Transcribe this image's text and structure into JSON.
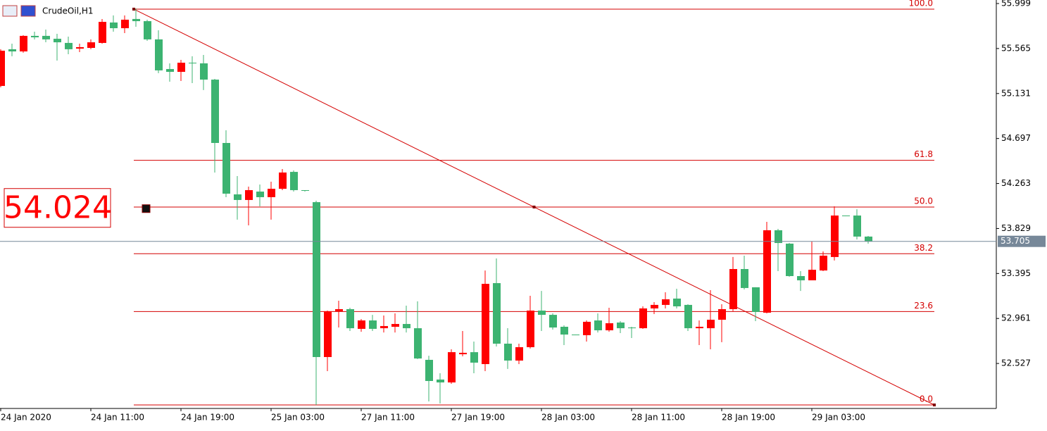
{
  "chart_data": {
    "type": "candlestick",
    "title": "CrudeOil,H1",
    "categories": [
      "24 Jan 2020",
      null,
      null,
      null,
      null,
      null,
      null,
      null,
      "24 Jan 11:00",
      null,
      null,
      null,
      null,
      null,
      null,
      null,
      "24 Jan 19:00",
      null,
      null,
      null,
      null,
      null,
      null,
      null,
      "25 Jan 03:00",
      null,
      null,
      null,
      null,
      null,
      null,
      null,
      "27 Jan 11:00",
      null,
      null,
      null,
      null,
      null,
      null,
      null,
      "27 Jan 19:00",
      null,
      null,
      null,
      null,
      null,
      null,
      null,
      "28 Jan 03:00",
      null,
      null,
      null,
      null,
      null,
      null,
      null,
      "28 Jan 11:00",
      null,
      null,
      null,
      null,
      null,
      null,
      null,
      "28 Jan 19:00",
      null,
      null,
      null,
      null,
      null,
      null,
      null,
      "29 Jan 03:00",
      null,
      null,
      null,
      null,
      null
    ],
    "open": [
      55.204,
      55.558,
      55.537,
      55.687,
      55.687,
      55.659,
      55.619,
      55.564,
      55.571,
      55.619,
      55.816,
      55.761,
      55.85,
      55.829,
      55.653,
      55.367,
      55.34,
      55.428,
      55.422,
      55.265,
      54.654,
      54.158,
      54.104,
      54.185,
      54.131,
      54.212,
      54.375,
      54.199,
      54.083,
      52.589,
      53.031,
      53.051,
      52.861,
      52.942,
      52.867,
      52.881,
      52.908,
      52.867,
      52.562,
      52.372,
      52.344,
      52.616,
      52.636,
      52.521,
      53.302,
      52.718,
      52.555,
      52.684,
      53.037,
      52.996,
      52.881,
      52.806,
      52.8,
      52.942,
      52.847,
      52.922,
      52.874,
      52.867,
      53.058,
      53.092,
      53.153,
      53.092,
      52.867,
      52.867,
      52.949,
      53.051,
      53.438,
      53.262,
      53.017,
      53.812,
      53.683,
      53.37,
      53.329,
      53.424,
      53.554,
      53.954,
      53.954,
      53.751
    ],
    "high": [
      55.558,
      55.612,
      55.693,
      55.727,
      55.748,
      55.707,
      55.68,
      55.612,
      55.653,
      55.85,
      55.884,
      55.884,
      55.952,
      55.843,
      55.741,
      55.422,
      55.456,
      55.49,
      55.503,
      55.272,
      54.776,
      54.335,
      54.233,
      54.253,
      54.28,
      54.403,
      54.389,
      54.199,
      54.097,
      53.037,
      53.132,
      53.064,
      52.956,
      52.996,
      52.99,
      53.01,
      53.085,
      53.126,
      52.602,
      52.433,
      52.664,
      52.84,
      52.738,
      53.424,
      53.54,
      52.867,
      52.718,
      53.18,
      53.227,
      53.01,
      52.895,
      52.806,
      52.942,
      53.01,
      53.064,
      52.935,
      52.881,
      53.078,
      53.119,
      53.214,
      53.248,
      53.098,
      52.942,
      53.234,
      53.098,
      53.554,
      53.567,
      53.262,
      53.893,
      53.825,
      53.689,
      53.418,
      53.703,
      53.608,
      54.043,
      53.954,
      54.015,
      53.757
    ],
    "low": [
      55.191,
      55.49,
      55.524,
      55.653,
      55.625,
      55.449,
      55.51,
      55.53,
      55.558,
      55.612,
      55.727,
      55.714,
      55.775,
      55.639,
      55.327,
      55.245,
      55.252,
      55.231,
      55.164,
      54.369,
      54.131,
      53.914,
      53.859,
      54.043,
      53.914,
      54.199,
      54.185,
      54.185,
      52.127,
      52.453,
      52.874,
      52.84,
      52.833,
      52.84,
      52.826,
      52.826,
      52.826,
      52.569,
      52.161,
      52.141,
      52.331,
      52.596,
      52.433,
      52.453,
      52.691,
      52.474,
      52.521,
      52.671,
      52.84,
      52.854,
      52.704,
      52.8,
      52.738,
      52.826,
      52.833,
      52.82,
      52.772,
      52.861,
      53.003,
      53.058,
      53.058,
      52.84,
      52.704,
      52.664,
      52.732,
      53.031,
      53.241,
      52.935,
      53.01,
      53.418,
      53.363,
      53.227,
      53.329,
      53.418,
      53.52,
      53.948,
      53.723,
      53.683
    ],
    "close": [
      55.544,
      55.537,
      55.687,
      55.673,
      55.653,
      55.625,
      55.558,
      55.578,
      55.625,
      55.822,
      55.761,
      55.843,
      55.829,
      55.653,
      55.354,
      55.34,
      55.428,
      55.422,
      55.265,
      54.654,
      54.165,
      54.104,
      54.199,
      54.131,
      54.212,
      54.369,
      54.199,
      54.192,
      52.589,
      53.031,
      53.051,
      52.867,
      52.942,
      52.861,
      52.888,
      52.908,
      52.867,
      52.575,
      52.358,
      52.344,
      52.636,
      52.63,
      52.535,
      53.295,
      52.718,
      52.555,
      52.684,
      53.037,
      52.996,
      52.874,
      52.806,
      52.8,
      52.929,
      52.847,
      52.915,
      52.867,
      52.867,
      53.058,
      53.092,
      53.146,
      53.078,
      52.867,
      52.881,
      52.949,
      53.051,
      53.438,
      53.255,
      53.024,
      53.812,
      53.689,
      53.37,
      53.329,
      53.431,
      53.567,
      53.954,
      53.948,
      53.751,
      53.705
    ],
    "up_color": "#ff0000",
    "down_color": "#3cb371",
    "ylim": [
      52.093,
      56.033
    ],
    "yticks": [
      55.999,
      55.565,
      55.131,
      54.697,
      54.263,
      53.829,
      53.395,
      52.961,
      52.527
    ],
    "last_price": 53.705,
    "crosshair_price": 54.024,
    "fibonacci": {
      "high": 55.945,
      "low": 52.127,
      "color": "#d40000",
      "levels": [
        {
          "value": 100,
          "label": "100.0"
        },
        {
          "value": 61.8,
          "label": "61.8"
        },
        {
          "value": 50,
          "label": "50.0"
        },
        {
          "value": 38.2,
          "label": "38.2"
        },
        {
          "value": 23.6,
          "label": "23.6"
        },
        {
          "value": 0,
          "label": "0.0"
        }
      ]
    }
  }
}
